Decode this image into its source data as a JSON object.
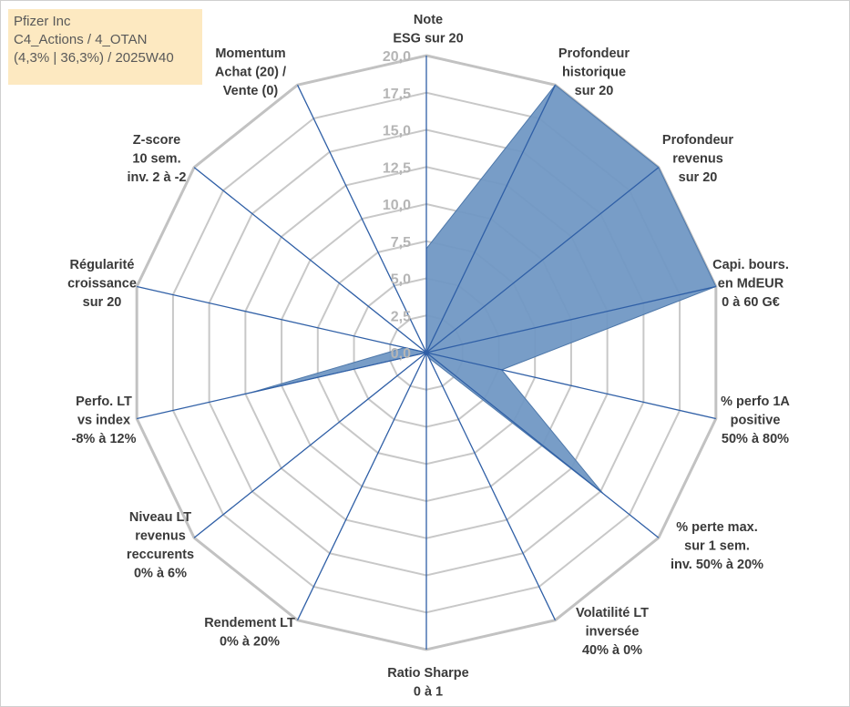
{
  "title_box": {
    "line1": "Pfizer Inc",
    "line2": "C4_Actions / 4_OTAN",
    "line3": "(4,3% | 36,3%) / 2025W40"
  },
  "chart_data": {
    "type": "radar",
    "title": "Pfizer Inc",
    "rmin": 0,
    "rmax": 20,
    "ticks": [
      "0,0",
      "2,5",
      "5,0",
      "7,5",
      "10,0",
      "12,5",
      "15,0",
      "17,5",
      "20,0"
    ],
    "axes": [
      [
        "Note",
        "ESG sur 20"
      ],
      [
        "Profondeur",
        "historique",
        "sur 20"
      ],
      [
        "Profondeur",
        "revenus",
        "sur 20"
      ],
      [
        "Capi. bours.",
        "en MdEUR",
        "0 à 60 G€"
      ],
      [
        "% perfo 1A",
        "positive",
        "50% à 80%"
      ],
      [
        "% perte max.",
        "sur 1 sem.",
        "inv. 50% à 20%"
      ],
      [
        "Volatilité LT",
        "inversée",
        "40% à 0%"
      ],
      [
        "Ratio Sharpe",
        "0 à 1"
      ],
      [
        "Rendement LT",
        "0% à 20%"
      ],
      [
        "Niveau LT",
        "revenus",
        "reccurents",
        "0% à 6%"
      ],
      [
        "Perfo. LT",
        "vs index",
        "-8% à 12%"
      ],
      [
        "Régularité",
        "croissance",
        "sur 20"
      ],
      [
        "Z-score",
        "10 sem.",
        "inv. 2 à -2"
      ],
      [
        "Momentum",
        "Achat (20) /",
        "Vente (0)"
      ]
    ],
    "values": [
      7.0,
      20.0,
      20.0,
      20.0,
      5.2,
      15.2,
      0.4,
      0.0,
      0.2,
      0.0,
      12.1,
      1.5,
      0.0,
      0.0
    ],
    "fill_color": "#7198c4",
    "grid_color": "#c8c8c8",
    "outer_ring_color": "#c2c2c2",
    "spoke_color": "#2f5fa6",
    "grid": true,
    "legend": "none"
  }
}
